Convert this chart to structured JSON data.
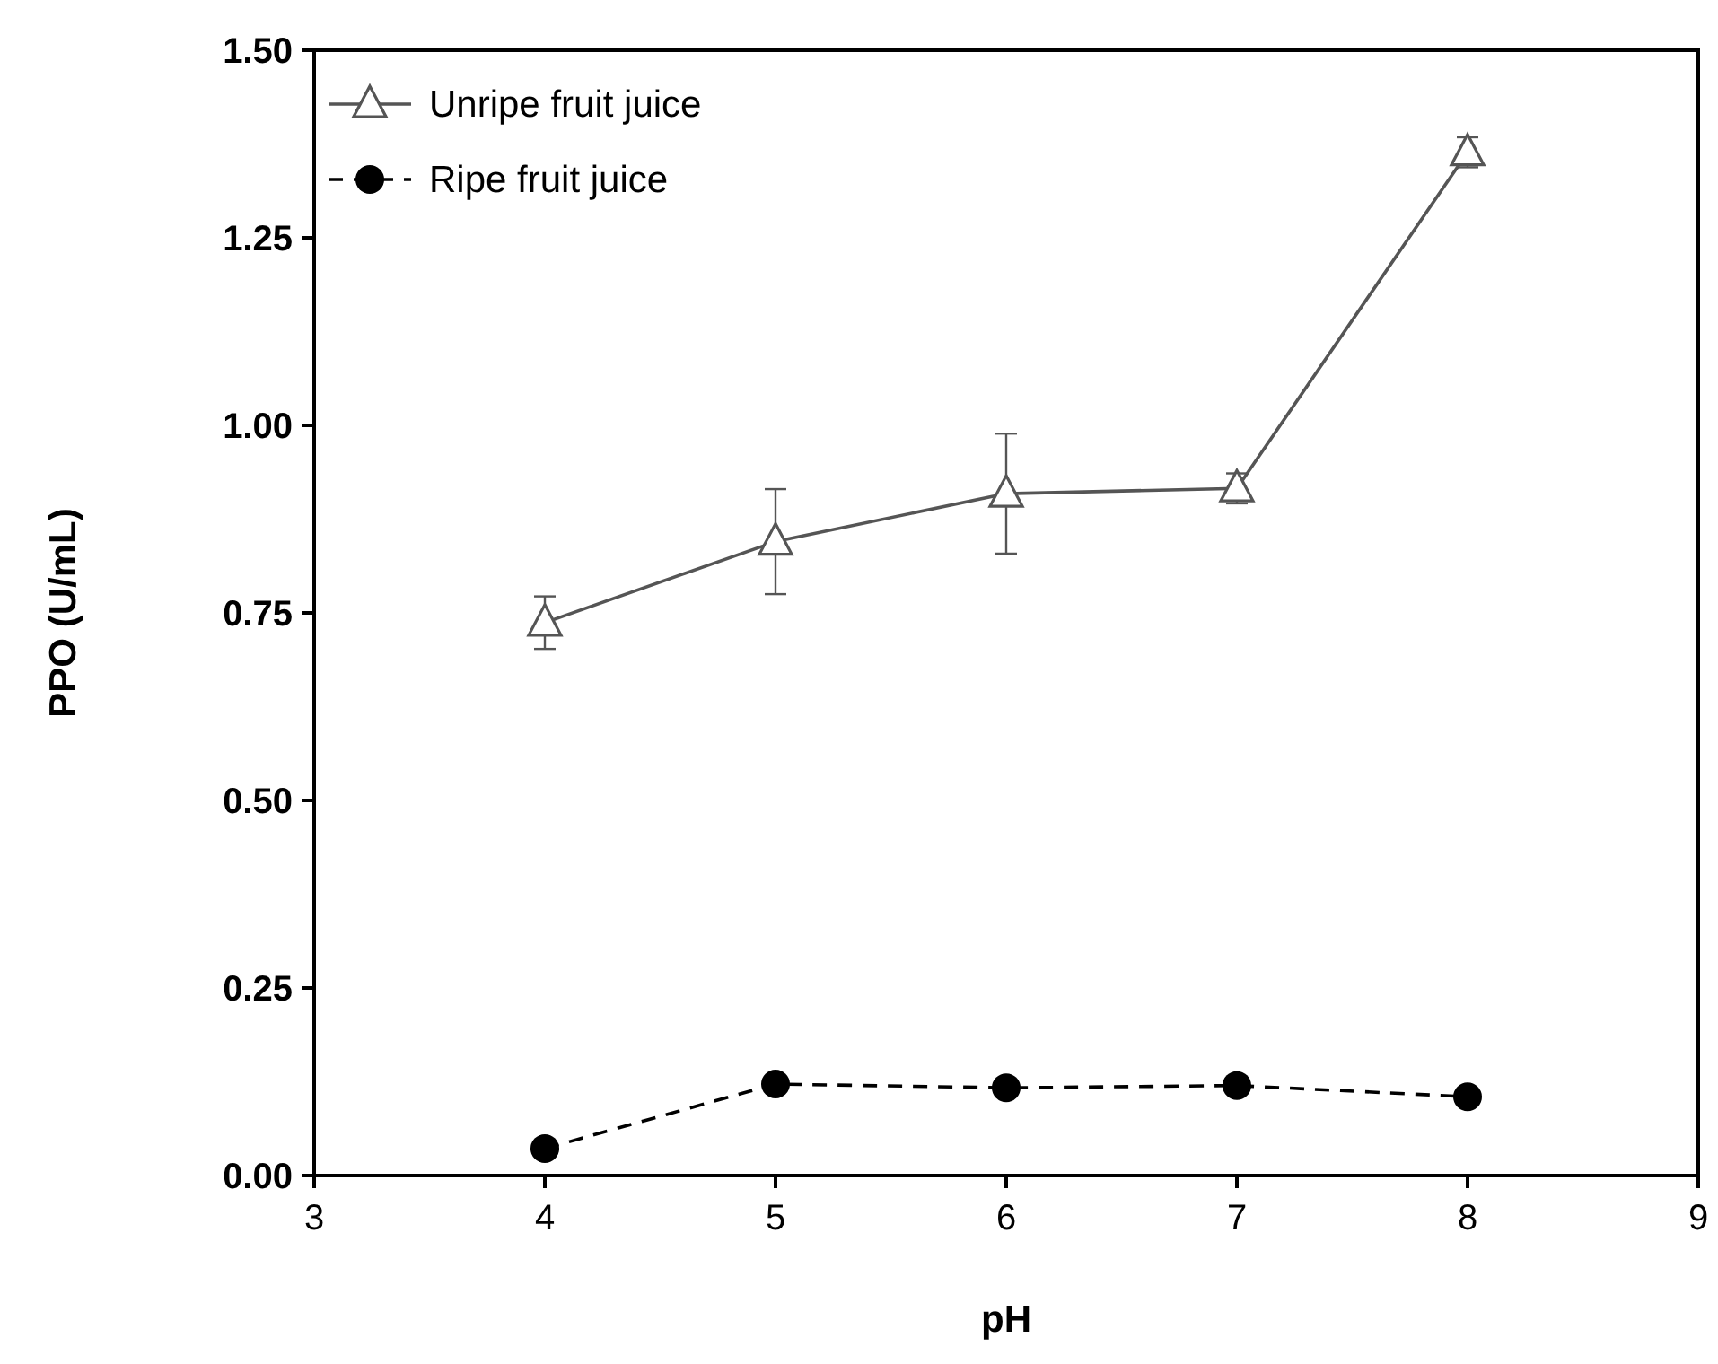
{
  "chart_data": {
    "type": "line",
    "xlabel": "pH",
    "ylabel": "PPO (U/mL)",
    "x": [
      4,
      5,
      6,
      7,
      8
    ],
    "series": [
      {
        "name": "Unripe fruit juice",
        "color": "#555555",
        "values": [
          0.737,
          0.845,
          0.909,
          0.916,
          1.364
        ],
        "errors": [
          0.035,
          0.07,
          0.08,
          0.02,
          0.02
        ],
        "marker": "triangle",
        "line_style": "solid"
      },
      {
        "name": "Ripe fruit juice",
        "color": "#000000",
        "values": [
          0.036,
          0.122,
          0.117,
          0.12,
          0.105
        ],
        "marker": "circle",
        "line_style": "dashed"
      }
    ],
    "xlim": [
      3,
      9
    ],
    "xticks": [
      3,
      4,
      5,
      6,
      7,
      8,
      9
    ],
    "ylim": [
      0,
      1.5
    ],
    "yticks": [
      {
        "value": 0,
        "label": "0.00"
      },
      {
        "value": 0.25,
        "label": "0.25"
      },
      {
        "value": 0.5,
        "label": "0.50"
      },
      {
        "value": 0.75,
        "label": "0.75"
      },
      {
        "value": 1,
        "label": "1.00"
      },
      {
        "value": 1.25,
        "label": "1.25"
      },
      {
        "value": 1.5,
        "label": "1.50"
      }
    ],
    "legend": "top left",
    "grid": false
  }
}
